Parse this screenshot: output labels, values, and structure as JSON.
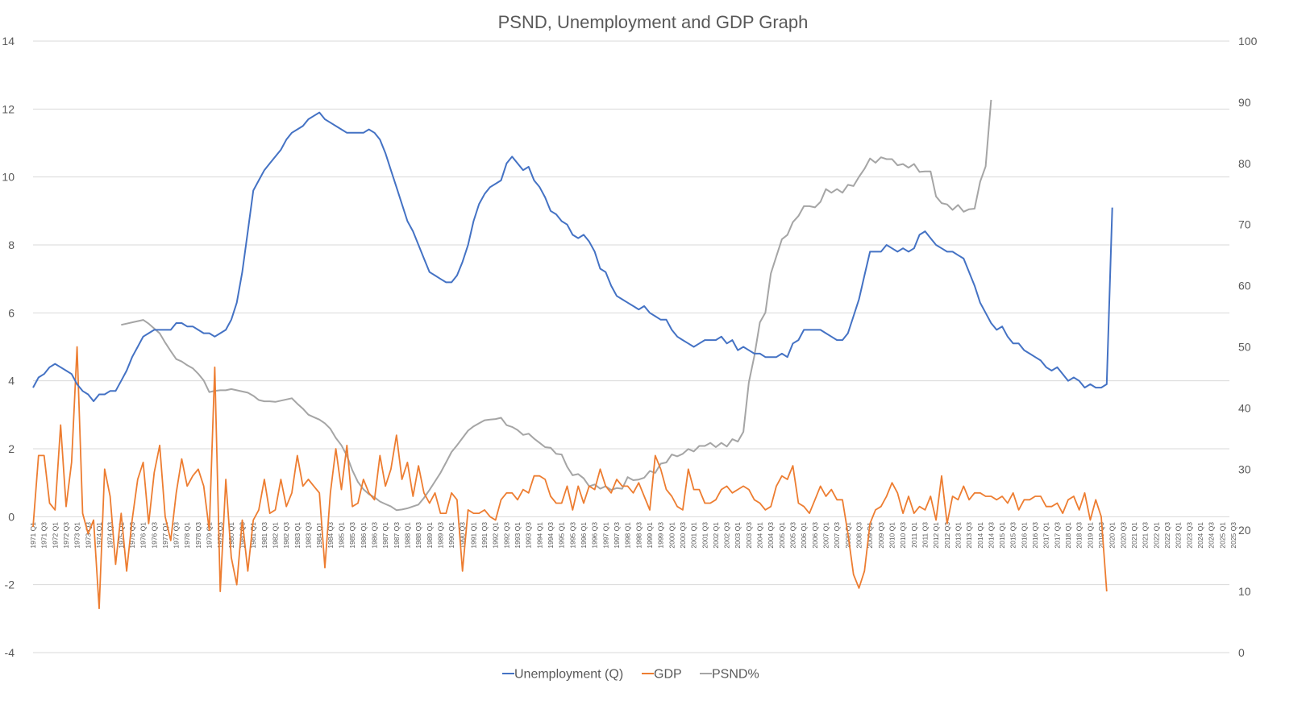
{
  "colors": {
    "unemployment": "#4472C4",
    "gdp": "#ED7D31",
    "psnd": "#A5A5A5",
    "grid": "#D9D9D9",
    "text": "#595959"
  },
  "chart_data": {
    "type": "line",
    "title": "PSND, Unemployment and GDP Graph",
    "xlabel": "",
    "ylabel": "",
    "y_left_lim": [
      -4,
      14
    ],
    "y_left_ticks": [
      -4,
      -2,
      0,
      2,
      4,
      6,
      8,
      10,
      12,
      14
    ],
    "y_right_lim": [
      0,
      100
    ],
    "y_right_ticks": [
      0,
      10,
      20,
      30,
      40,
      50,
      60,
      70,
      80,
      90,
      100
    ],
    "grid": true,
    "legend_position": "bottom",
    "x_start_year": 1971,
    "x_end_year": 2025,
    "x_tick_every_quarters": 2,
    "series": [
      {
        "name": "Unemployment (Q)",
        "axis": "left",
        "start_index": 0,
        "values": [
          3.8,
          4.1,
          4.2,
          4.4,
          4.5,
          4.4,
          4.3,
          4.2,
          3.9,
          3.7,
          3.6,
          3.4,
          3.6,
          3.6,
          3.7,
          3.7,
          4.0,
          4.3,
          4.7,
          5.0,
          5.3,
          5.4,
          5.5,
          5.5,
          5.5,
          5.5,
          5.7,
          5.7,
          5.6,
          5.6,
          5.5,
          5.4,
          5.4,
          5.3,
          5.4,
          5.5,
          5.8,
          6.3,
          7.2,
          8.4,
          9.6,
          9.9,
          10.2,
          10.4,
          10.6,
          10.8,
          11.1,
          11.3,
          11.4,
          11.5,
          11.7,
          11.8,
          11.9,
          11.7,
          11.6,
          11.5,
          11.4,
          11.3,
          11.3,
          11.3,
          11.3,
          11.4,
          11.3,
          11.1,
          10.7,
          10.2,
          9.7,
          9.2,
          8.7,
          8.4,
          8.0,
          7.6,
          7.2,
          7.1,
          7.0,
          6.9,
          6.9,
          7.1,
          7.5,
          8.0,
          8.7,
          9.2,
          9.5,
          9.7,
          9.8,
          9.9,
          10.4,
          10.6,
          10.4,
          10.2,
          10.3,
          9.9,
          9.7,
          9.4,
          9.0,
          8.9,
          8.7,
          8.6,
          8.3,
          8.2,
          8.3,
          8.1,
          7.8,
          7.3,
          7.2,
          6.8,
          6.5,
          6.4,
          6.3,
          6.2,
          6.1,
          6.2,
          6.0,
          5.9,
          5.8,
          5.8,
          5.5,
          5.3,
          5.2,
          5.1,
          5.0,
          5.1,
          5.2,
          5.2,
          5.2,
          5.3,
          5.1,
          5.2,
          4.9,
          5.0,
          4.9,
          4.8,
          4.8,
          4.7,
          4.7,
          4.7,
          4.8,
          4.7,
          5.1,
          5.2,
          5.5,
          5.5,
          5.5,
          5.5,
          5.4,
          5.3,
          5.2,
          5.2,
          5.4,
          5.9,
          6.4,
          7.1,
          7.8,
          7.8,
          7.8,
          8.0,
          7.9,
          7.8,
          7.9,
          7.8,
          7.9,
          8.3,
          8.4,
          8.2,
          8.0,
          7.9,
          7.8,
          7.8,
          7.7,
          7.6,
          7.2,
          6.8,
          6.3,
          6.0,
          5.7,
          5.5,
          5.6,
          5.3,
          5.1,
          5.1,
          4.9,
          4.8,
          4.7,
          4.6,
          4.4,
          4.3,
          4.4,
          4.2,
          4.0,
          4.1,
          4.0,
          3.8,
          3.9,
          3.8,
          3.8,
          3.9,
          9.1
        ]
      },
      {
        "name": "GDP",
        "axis": "left",
        "start_index": 0,
        "values": [
          -0.3,
          1.8,
          1.8,
          0.4,
          0.2,
          2.7,
          0.3,
          1.6,
          5.0,
          0.1,
          -0.5,
          -0.1,
          -2.7,
          1.4,
          0.6,
          -1.4,
          0.1,
          -1.6,
          -0.1,
          1.1,
          1.6,
          -0.2,
          1.3,
          2.1,
          0.0,
          -0.7,
          0.7,
          1.7,
          0.9,
          1.2,
          1.4,
          0.9,
          -0.4,
          4.4,
          -2.2,
          1.1,
          -1.2,
          -2.0,
          -0.1,
          -1.6,
          -0.1,
          0.2,
          1.1,
          0.1,
          0.2,
          1.1,
          0.3,
          0.7,
          1.8,
          0.9,
          1.1,
          0.9,
          0.7,
          -1.5,
          0.7,
          2.0,
          0.8,
          2.1,
          0.3,
          0.4,
          1.1,
          0.7,
          0.5,
          1.8,
          0.9,
          1.4,
          2.4,
          1.1,
          1.6,
          0.6,
          1.5,
          0.7,
          0.4,
          0.7,
          0.1,
          0.1,
          0.7,
          0.5,
          -1.6,
          0.2,
          0.1,
          0.1,
          0.2,
          0.0,
          -0.1,
          0.5,
          0.7,
          0.7,
          0.5,
          0.8,
          0.7,
          1.2,
          1.2,
          1.1,
          0.6,
          0.4,
          0.4,
          0.9,
          0.2,
          0.9,
          0.4,
          0.9,
          0.8,
          1.4,
          0.9,
          0.7,
          1.1,
          0.9,
          0.9,
          0.7,
          1.0,
          0.6,
          0.2,
          1.8,
          1.4,
          0.8,
          0.6,
          0.3,
          0.2,
          1.4,
          0.8,
          0.8,
          0.4,
          0.4,
          0.5,
          0.8,
          0.9,
          0.7,
          0.8,
          0.9,
          0.8,
          0.5,
          0.4,
          0.2,
          0.3,
          0.9,
          1.2,
          1.1,
          1.5,
          0.4,
          0.3,
          0.1,
          0.5,
          0.9,
          0.6,
          0.8,
          0.5,
          0.5,
          -0.5,
          -1.7,
          -2.1,
          -1.6,
          -0.2,
          0.2,
          0.3,
          0.6,
          1.0,
          0.7,
          0.1,
          0.6,
          0.1,
          0.3,
          0.2,
          0.6,
          -0.1,
          1.2,
          -0.2,
          0.6,
          0.5,
          0.9,
          0.5,
          0.7,
          0.7,
          0.6,
          0.6,
          0.5,
          0.6,
          0.4,
          0.7,
          0.2,
          0.5,
          0.5,
          0.6,
          0.6,
          0.3,
          0.3,
          0.4,
          0.1,
          0.5,
          0.6,
          0.2,
          0.7,
          -0.1,
          0.5,
          0.0,
          -2.2
        ]
      },
      {
        "name": "PSND%",
        "axis": "right",
        "start_index": 16,
        "values": [
          53.6,
          53.8,
          54.0,
          54.2,
          54.4,
          53.8,
          53.0,
          52.2,
          50.7,
          49.3,
          48.0,
          47.6,
          47.0,
          46.5,
          45.6,
          44.5,
          42.6,
          42.8,
          42.9,
          42.9,
          43.1,
          42.9,
          42.7,
          42.5,
          42.0,
          41.3,
          41.1,
          41.1,
          41.0,
          41.2,
          41.4,
          41.6,
          40.7,
          39.9,
          38.9,
          38.5,
          38.1,
          37.5,
          36.6,
          35.1,
          33.9,
          32.2,
          29.8,
          27.9,
          26.7,
          25.9,
          25.4,
          24.7,
          24.3,
          23.9,
          23.3,
          23.4,
          23.6,
          23.9,
          24.2,
          25.3,
          26.6,
          28.0,
          29.4,
          31.1,
          32.8,
          33.9,
          35.1,
          36.3,
          37.0,
          37.5,
          38.0,
          38.1,
          38.2,
          38.4,
          37.2,
          36.9,
          36.4,
          35.6,
          35.8,
          35.0,
          34.3,
          33.6,
          33.5,
          32.5,
          32.4,
          30.4,
          29.0,
          29.2,
          28.5,
          27.2,
          27.5,
          26.8,
          27.2,
          26.6,
          26.9,
          26.8,
          28.7,
          28.2,
          28.3,
          28.6,
          29.7,
          29.4,
          30.9,
          31.1,
          32.4,
          32.1,
          32.5,
          33.3,
          32.9,
          33.8,
          33.8,
          34.3,
          33.6,
          34.3,
          33.7,
          34.9,
          34.5,
          36.1,
          44.2,
          48.5,
          54.0,
          55.6,
          62.0,
          64.8,
          67.6,
          68.3,
          70.4,
          71.4,
          73.0,
          73.0,
          72.8,
          73.7,
          75.8,
          75.2,
          75.8,
          75.2,
          76.5,
          76.3,
          77.8,
          79.1,
          80.8,
          80.1,
          81.0,
          80.7,
          80.7,
          79.7,
          79.9,
          79.3,
          79.9,
          78.6,
          78.7,
          78.7,
          74.6,
          73.5,
          73.3,
          72.4,
          73.2,
          72.1,
          72.5,
          72.6,
          77.0,
          79.5,
          90.4
        ]
      }
    ]
  }
}
